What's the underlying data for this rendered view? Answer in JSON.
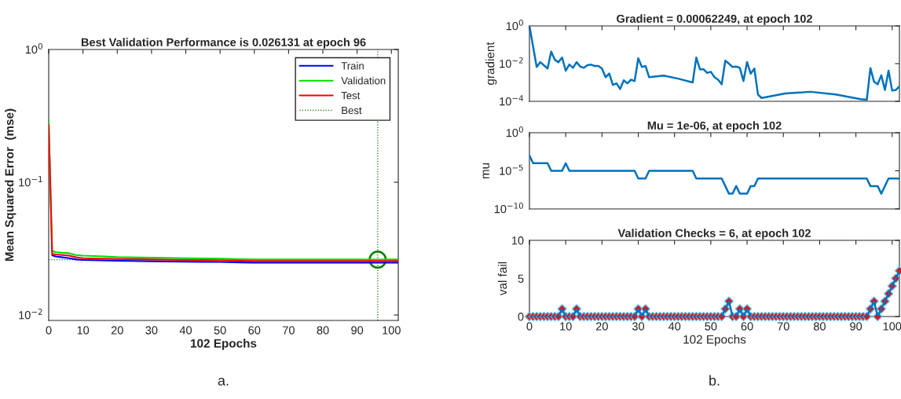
{
  "chart_data": [
    {
      "type": "line",
      "title": "Best Validation Performance is 0.026131 at epoch 96",
      "xlabel": "102 Epochs",
      "ylabel": "Mean Squared Error  (mse)",
      "log": "y",
      "x": [
        0,
        1,
        2,
        4,
        6,
        8,
        10,
        15,
        20,
        30,
        40,
        50,
        56,
        60,
        70,
        80,
        90,
        96,
        100,
        102
      ],
      "series": [
        {
          "name": "Train",
          "color": "#0000ff",
          "values": [
            null,
            0.0282,
            0.0276,
            0.0272,
            0.0268,
            0.0262,
            0.026,
            0.0258,
            0.0256,
            0.0254,
            0.0252,
            0.0251,
            0.0249,
            0.0248,
            0.0248,
            0.0248,
            0.0248,
            0.0248,
            0.0248,
            0.0248
          ]
        },
        {
          "name": "Validation",
          "color": "#00dd00",
          "values": [
            0.29,
            0.0305,
            0.0298,
            0.0294,
            0.0292,
            0.0283,
            0.028,
            0.0277,
            0.0273,
            0.027,
            0.0268,
            0.0266,
            0.0263,
            0.0262,
            0.0262,
            0.0262,
            0.0262,
            0.026131,
            0.0262,
            0.0262
          ]
        },
        {
          "name": "Test",
          "color": "#ff0000",
          "values": [
            0.27,
            0.029,
            0.0286,
            0.0283,
            0.028,
            0.0272,
            0.0268,
            0.0266,
            0.0264,
            0.0262,
            0.026,
            0.0258,
            0.0256,
            0.0255,
            0.0255,
            0.0255,
            0.0255,
            0.0255,
            0.0255,
            0.0255
          ]
        },
        {
          "type": "scatter",
          "marker": "circle",
          "color": "#008000",
          "x": [
            96
          ],
          "values": [
            0.026131
          ]
        }
      ],
      "ref_lines": [
        {
          "axis": "x",
          "value": 96,
          "label": "Best",
          "color": "#008000",
          "line_style": "dotted"
        },
        {
          "axis": "y",
          "value": 0.026131,
          "color": "#008000",
          "line_style": "dotted"
        }
      ],
      "xlim": [
        0,
        102
      ],
      "xticks": [
        0,
        10,
        20,
        30,
        40,
        50,
        60,
        70,
        80,
        90,
        100
      ],
      "ylim": [
        0.0091,
        1
      ],
      "yticks": [
        {
          "value": 1,
          "label": "10$^{0}$"
        },
        {
          "value": 0.1,
          "label": "10$^{−1}$"
        },
        {
          "value": 0.01,
          "label": "10$^{−2}$"
        }
      ],
      "legend": "top right",
      "grid": false,
      "annotations": [
        "a."
      ]
    },
    {
      "type": "line",
      "title": "Gradient = 0.00062249, at epoch 102",
      "ylabel": "gradient",
      "log": "y",
      "tick_labels": "y",
      "x": [
        0,
        2,
        3,
        5,
        6,
        7,
        8,
        9,
        10,
        11,
        12,
        13,
        14,
        15,
        16,
        17,
        18,
        19,
        20,
        21,
        22,
        23,
        24,
        25,
        26,
        27,
        28,
        29,
        30,
        31,
        32,
        33,
        37,
        41,
        45,
        46,
        47,
        48,
        49,
        50,
        51,
        52,
        53,
        54,
        55,
        56,
        57,
        58,
        59,
        60,
        61,
        62,
        63,
        64,
        70.5,
        77.5,
        84.4,
        91.3,
        93,
        94,
        95,
        96,
        97,
        98,
        99,
        100,
        101,
        102
      ],
      "series": [
        {
          "color": "#0072bd",
          "values": [
            1,
            0.0066,
            0.012,
            0.0055,
            0.043,
            0.016,
            0.012,
            0.021,
            0.0042,
            0.009,
            0.006,
            0.012,
            0.007,
            0.006,
            0.0082,
            0.0088,
            0.0075,
            0.0075,
            0.0055,
            0.0019,
            0.003,
            0.00074,
            0.0009,
            0.00045,
            0.0013,
            0.0009,
            0.0014,
            0.0012,
            0.019,
            0.0066,
            0.0075,
            0.0019,
            0.0023,
            0.0016,
            0.001,
            0.021,
            0.005,
            0.005,
            0.0032,
            0.0037,
            0.0019,
            0.0014,
            0.0008,
            0.0144,
            0.01,
            0.0066,
            0.007,
            0.006,
            0.0012,
            0.012,
            0.0029,
            0.0055,
            0.00023,
            0.00015,
            0.00026,
            0.00032,
            0.00023,
            0.00013,
            0.00012,
            0.0058,
            0.0011,
            0.0008,
            0.0024,
            0.0004,
            0.0042,
            0.00037,
            0.0004,
            0.00062249
          ]
        }
      ],
      "xlim": [
        0,
        102
      ],
      "xticks": [
        0,
        10,
        20,
        30,
        40,
        50,
        60,
        70,
        80,
        90,
        100
      ],
      "ylim": [
        0.0001,
        1
      ],
      "yticks": [
        {
          "value": 1,
          "label": "10$^{0}$"
        },
        {
          "value": 0.01,
          "label": "10$^{−2}$"
        },
        {
          "value": 0.0001,
          "label": "10$^{−4}$"
        }
      ],
      "grid": false
    },
    {
      "type": "line",
      "title": "Mu = 1e-06, at epoch 102",
      "ylabel": "mu",
      "log": "y",
      "tick_labels": "y",
      "x": [
        0,
        1,
        2,
        3,
        4,
        5,
        6,
        7,
        8,
        9,
        10,
        11,
        12,
        13,
        14,
        15,
        16,
        17,
        18,
        19,
        20,
        21,
        22,
        23,
        24,
        25,
        26,
        27,
        28,
        29,
        30,
        31,
        32,
        33,
        34,
        35,
        36,
        37,
        38,
        39,
        40,
        41,
        42,
        43,
        44,
        45,
        46,
        47,
        48,
        49,
        50,
        51,
        52,
        53,
        54,
        55,
        56,
        57,
        58,
        59,
        60,
        61,
        62,
        63,
        64,
        65,
        66,
        67,
        68,
        69,
        70,
        71,
        72,
        73,
        74,
        75,
        76,
        77,
        78,
        79,
        80,
        81,
        82,
        83,
        84,
        85,
        86,
        87,
        88,
        89,
        90,
        91,
        92,
        93,
        94,
        95,
        96,
        97,
        98,
        99,
        100,
        101,
        102
      ],
      "series": [
        {
          "color": "#0072bd",
          "values": [
            0.001,
            0.0001,
            0.0001,
            0.0001,
            0.0001,
            0.0001,
            1e-05,
            1e-05,
            1e-05,
            1e-05,
            0.0001,
            1e-05,
            1e-05,
            1e-05,
            1e-05,
            1e-05,
            1e-05,
            1e-05,
            1e-05,
            1e-05,
            1e-05,
            1e-05,
            1e-05,
            1e-05,
            1e-05,
            1e-05,
            1e-05,
            1e-05,
            1e-05,
            1e-05,
            1e-06,
            1e-06,
            1e-06,
            1e-05,
            1e-05,
            1e-05,
            1e-05,
            1e-05,
            1e-05,
            1e-05,
            1e-05,
            1e-05,
            1e-05,
            1e-05,
            1e-05,
            1e-05,
            1e-06,
            1e-06,
            1e-06,
            1e-06,
            1e-06,
            1e-06,
            1e-06,
            1e-06,
            1e-07,
            1e-08,
            1e-08,
            1e-07,
            1e-08,
            1e-08,
            1e-08,
            1e-07,
            1e-07,
            1e-06,
            1e-06,
            1e-06,
            1e-06,
            1e-06,
            1e-06,
            1e-06,
            1e-06,
            1e-06,
            1e-06,
            1e-06,
            1e-06,
            1e-06,
            1e-06,
            1e-06,
            1e-06,
            1e-06,
            1e-06,
            1e-06,
            1e-06,
            1e-06,
            1e-06,
            1e-06,
            1e-06,
            1e-06,
            1e-06,
            1e-06,
            1e-06,
            1e-06,
            1e-06,
            1e-06,
            1e-07,
            1e-07,
            1e-07,
            1e-08,
            1e-07,
            1e-06,
            1e-06,
            1e-06,
            1e-06
          ]
        }
      ],
      "xlim": [
        0,
        102
      ],
      "xticks": [
        0,
        10,
        20,
        30,
        40,
        50,
        60,
        70,
        80,
        90,
        100
      ],
      "ylim": [
        1e-10,
        1
      ],
      "yticks": [
        {
          "value": 1,
          "label": "10$^{0}$"
        },
        {
          "value": 1e-05,
          "label": "10$^{−5}$"
        },
        {
          "value": 1e-10,
          "label": "10$^{−10}$"
        }
      ],
      "grid": false
    },
    {
      "type": "line",
      "title": "Validation Checks = 6, at epoch 102",
      "xlabel": "102 Epochs",
      "ylabel": "val fail",
      "x": [
        0,
        1,
        2,
        3,
        4,
        5,
        6,
        7,
        8,
        9,
        10,
        11,
        12,
        13,
        14,
        15,
        16,
        17,
        18,
        19,
        20,
        21,
        22,
        23,
        24,
        25,
        26,
        27,
        28,
        29,
        30,
        31,
        32,
        33,
        34,
        35,
        36,
        37,
        38,
        39,
        40,
        41,
        42,
        43,
        44,
        45,
        46,
        47,
        48,
        49,
        50,
        51,
        52,
        53,
        54,
        55,
        56,
        57,
        58,
        59,
        60,
        61,
        62,
        63,
        64,
        65,
        66,
        67,
        68,
        69,
        70,
        71,
        72,
        73,
        74,
        75,
        76,
        77,
        78,
        79,
        80,
        81,
        82,
        83,
        84,
        85,
        86,
        87,
        88,
        89,
        90,
        91,
        92,
        93,
        94,
        95,
        96,
        97,
        98,
        99,
        100,
        101,
        102
      ],
      "series": [
        {
          "color": "#0072bd",
          "values": [
            0,
            0,
            0,
            0,
            0,
            0,
            0,
            0,
            0,
            1,
            0,
            0,
            0,
            1,
            0,
            0,
            0,
            0,
            0,
            0,
            0,
            0,
            0,
            0,
            0,
            0,
            0,
            0,
            0,
            0,
            1,
            0,
            1,
            0,
            0,
            0,
            0,
            0,
            0,
            0,
            0,
            0,
            0,
            0,
            0,
            0,
            0,
            0,
            0,
            0,
            0,
            0,
            0,
            0,
            1,
            2,
            0,
            0,
            1,
            0,
            1,
            0,
            0,
            0,
            0,
            0,
            0,
            0,
            0,
            0,
            0,
            0,
            0,
            0,
            0,
            0,
            0,
            0,
            0,
            0,
            0,
            0,
            0,
            0,
            0,
            0,
            0,
            0,
            0,
            0,
            0,
            0,
            0,
            0,
            1,
            2,
            0,
            1,
            2,
            3,
            4,
            5,
            6
          ]
        },
        {
          "type": "scatter",
          "marker": "diamond",
          "color": "#ff0000",
          "values": [
            0,
            0,
            0,
            0,
            0,
            0,
            0,
            0,
            0,
            1,
            0,
            0,
            0,
            1,
            0,
            0,
            0,
            0,
            0,
            0,
            0,
            0,
            0,
            0,
            0,
            0,
            0,
            0,
            0,
            0,
            1,
            0,
            1,
            0,
            0,
            0,
            0,
            0,
            0,
            0,
            0,
            0,
            0,
            0,
            0,
            0,
            0,
            0,
            0,
            0,
            0,
            0,
            0,
            0,
            1,
            2,
            0,
            0,
            1,
            0,
            1,
            0,
            0,
            0,
            0,
            0,
            0,
            0,
            0,
            0,
            0,
            0,
            0,
            0,
            0,
            0,
            0,
            0,
            0,
            0,
            0,
            0,
            0,
            0,
            0,
            0,
            0,
            0,
            0,
            0,
            0,
            0,
            0,
            0,
            1,
            2,
            0,
            1,
            2,
            3,
            4,
            5,
            6
          ]
        }
      ],
      "xlim": [
        0,
        102
      ],
      "xticks": [
        0,
        10,
        20,
        30,
        40,
        50,
        60,
        70,
        80,
        90,
        100
      ],
      "ylim": [
        0,
        10
      ],
      "yticks": [
        0,
        5,
        10
      ],
      "grid": false,
      "annotations": [
        "b."
      ]
    }
  ]
}
